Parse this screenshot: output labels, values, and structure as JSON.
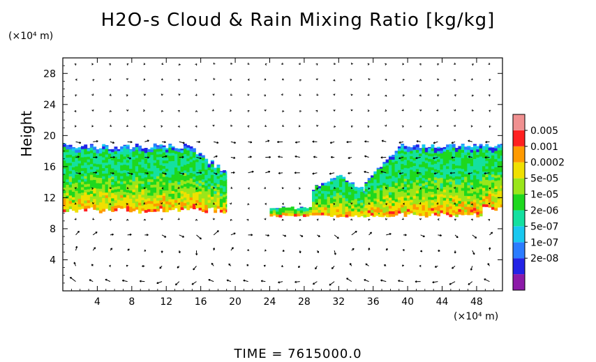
{
  "title": "H2O-s Cloud & Rain Mixing Ratio [kg/kg]",
  "time_label": "TIME = 7615000.0",
  "colors": {
    "bands": [
      "#8c1aa8",
      "#2323e6",
      "#2b7cff",
      "#19c8f0",
      "#14e0a0",
      "#1ed81e",
      "#9ae61a",
      "#f0e000",
      "#ff9a00",
      "#ff2020",
      "#f09090"
    ]
  },
  "chart_data": {
    "type": "heatmap",
    "title": "H2O-s Cloud & Rain Mixing Ratio [kg/kg]",
    "xlabel": "",
    "xunit": "(×10⁴ m)",
    "ylabel": "Height",
    "yunit": "(×10⁴ m)",
    "xlim": [
      0,
      51
    ],
    "ylim": [
      0,
      30
    ],
    "x_ticks": [
      4,
      8,
      12,
      16,
      20,
      24,
      28,
      32,
      36,
      40,
      44,
      48
    ],
    "y_ticks": [
      4,
      8,
      12,
      16,
      20,
      24,
      28
    ],
    "colorbar_labels": [
      "0.005",
      "0.001",
      "0.0002",
      "5e-05",
      "1e-05",
      "2e-06",
      "5e-07",
      "1e-07",
      "2e-08"
    ],
    "overlay": "wind vectors",
    "regions": [
      {
        "name": "cloud-left",
        "x": [
          0,
          19
        ],
        "y": [
          10,
          19
        ]
      },
      {
        "name": "cloud-center",
        "x": [
          24,
          38
        ],
        "y": [
          9.5,
          15
        ]
      },
      {
        "name": "cloud-right",
        "x": [
          35,
          51
        ],
        "y": [
          9.5,
          19
        ]
      }
    ]
  }
}
